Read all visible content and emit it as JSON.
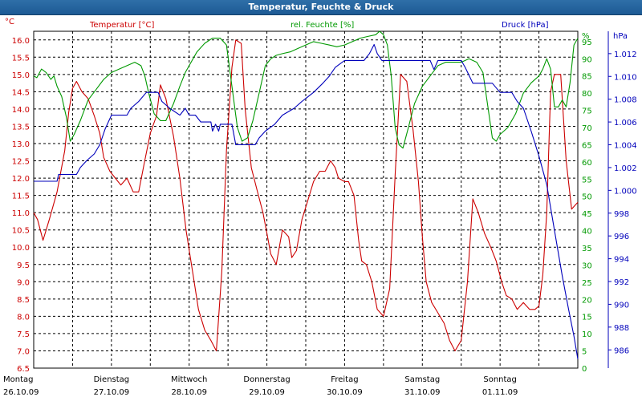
{
  "window": {
    "title": "Temperatur, Feuchte & Druck"
  },
  "chart_data": {
    "type": "line",
    "title": "Temperatur, Feuchte & Druck",
    "axes": {
      "temperature": {
        "label": "Temperatur [°C]",
        "unit": "°C",
        "min": 6.5,
        "max": 16.25,
        "color": "#cc0000",
        "ticks": [
          "16.0",
          "15.5",
          "15.0",
          "14.5",
          "14.0",
          "13.5",
          "13.0",
          "12.5",
          "12.0",
          "11.5",
          "11.0",
          "10.5",
          "10.0",
          "9.5",
          "9.0",
          "8.5",
          "8.0",
          "7.5",
          "7.0",
          "6.5"
        ]
      },
      "humidity": {
        "label": "rel. Feuchte [%]",
        "unit": "%",
        "min": 0,
        "max": 98,
        "color": "#009900",
        "ticks": [
          "95",
          "90",
          "85",
          "80",
          "75",
          "70",
          "65",
          "60",
          "55",
          "50",
          "45",
          "40",
          "35",
          "30",
          "25",
          "20",
          "15",
          "10",
          "5",
          "0"
        ]
      },
      "pressure": {
        "label": "Druck [hPa]",
        "unit": "hPa",
        "min": 984.4,
        "max": 1013.96,
        "color": "#0000bb",
        "ticks": [
          "1.012",
          "1.010",
          "1.008",
          "1.006",
          "1.004",
          "1.002",
          "1.000",
          "998",
          "996",
          "994",
          "992",
          "990",
          "988",
          "986"
        ]
      }
    },
    "x": {
      "start": 0,
      "end": 7,
      "day_labels": [
        {
          "day": "Montag",
          "date": "26.10.09"
        },
        {
          "day": "Dienstag",
          "date": "27.10.09"
        },
        {
          "day": "Mittwoch",
          "date": "28.10.09"
        },
        {
          "day": "Donnerstag",
          "date": "29.10.09"
        },
        {
          "day": "Freitag",
          "date": "30.10.09"
        },
        {
          "day": "Samstag",
          "date": "31.10.09"
        },
        {
          "day": "Sonntag",
          "date": "01.11.09"
        }
      ]
    },
    "series": [
      {
        "name": "Temperatur [°C]",
        "axis": "temperature",
        "color": "#cc0000",
        "points": [
          [
            0,
            11.0
          ],
          [
            0.05,
            10.8
          ],
          [
            0.12,
            10.2
          ],
          [
            0.2,
            10.8
          ],
          [
            0.3,
            11.6
          ],
          [
            0.4,
            12.8
          ],
          [
            0.45,
            13.9
          ],
          [
            0.5,
            14.6
          ],
          [
            0.55,
            14.8
          ],
          [
            0.62,
            14.5
          ],
          [
            0.7,
            14.3
          ],
          [
            0.78,
            13.8
          ],
          [
            0.85,
            13.3
          ],
          [
            0.9,
            12.6
          ],
          [
            0.98,
            12.2
          ],
          [
            1.05,
            12.0
          ],
          [
            1.12,
            11.8
          ],
          [
            1.2,
            12.0
          ],
          [
            1.28,
            11.6
          ],
          [
            1.35,
            11.6
          ],
          [
            1.42,
            12.4
          ],
          [
            1.5,
            13.3
          ],
          [
            1.58,
            13.8
          ],
          [
            1.63,
            14.7
          ],
          [
            1.7,
            14.3
          ],
          [
            1.8,
            13.2
          ],
          [
            1.88,
            12.0
          ],
          [
            1.96,
            10.5
          ],
          [
            2.05,
            9.2
          ],
          [
            2.12,
            8.2
          ],
          [
            2.2,
            7.6
          ],
          [
            2.28,
            7.3
          ],
          [
            2.35,
            7.0
          ],
          [
            2.42,
            9.3
          ],
          [
            2.48,
            12.8
          ],
          [
            2.55,
            15.2
          ],
          [
            2.6,
            16.0
          ],
          [
            2.67,
            15.9
          ],
          [
            2.72,
            14.0
          ],
          [
            2.8,
            12.3
          ],
          [
            2.88,
            11.6
          ],
          [
            2.95,
            11.0
          ],
          [
            3.0,
            10.4
          ],
          [
            3.05,
            9.8
          ],
          [
            3.12,
            9.5
          ],
          [
            3.2,
            10.5
          ],
          [
            3.28,
            10.3
          ],
          [
            3.32,
            9.7
          ],
          [
            3.38,
            9.9
          ],
          [
            3.45,
            10.8
          ],
          [
            3.52,
            11.3
          ],
          [
            3.6,
            11.9
          ],
          [
            3.68,
            12.2
          ],
          [
            3.75,
            12.2
          ],
          [
            3.82,
            12.5
          ],
          [
            3.88,
            12.3
          ],
          [
            3.92,
            12.0
          ],
          [
            4.0,
            11.9
          ],
          [
            4.05,
            11.9
          ],
          [
            4.12,
            11.5
          ],
          [
            4.18,
            10.2
          ],
          [
            4.22,
            9.6
          ],
          [
            4.28,
            9.5
          ],
          [
            4.35,
            9.0
          ],
          [
            4.42,
            8.2
          ],
          [
            4.5,
            8.0
          ],
          [
            4.58,
            8.8
          ],
          [
            4.65,
            12.1
          ],
          [
            4.72,
            15.0
          ],
          [
            4.8,
            14.8
          ],
          [
            4.88,
            13.4
          ],
          [
            4.95,
            11.9
          ],
          [
            5.0,
            10.3
          ],
          [
            5.05,
            9.0
          ],
          [
            5.12,
            8.4
          ],
          [
            5.2,
            8.1
          ],
          [
            5.28,
            7.8
          ],
          [
            5.35,
            7.3
          ],
          [
            5.42,
            7.0
          ],
          [
            5.5,
            7.3
          ],
          [
            5.58,
            9.0
          ],
          [
            5.65,
            11.4
          ],
          [
            5.72,
            11.0
          ],
          [
            5.8,
            10.4
          ],
          [
            5.88,
            10.0
          ],
          [
            5.95,
            9.6
          ],
          [
            6.02,
            9.0
          ],
          [
            6.08,
            8.6
          ],
          [
            6.15,
            8.5
          ],
          [
            6.22,
            8.2
          ],
          [
            6.3,
            8.4
          ],
          [
            6.38,
            8.2
          ],
          [
            6.45,
            8.2
          ],
          [
            6.5,
            8.3
          ],
          [
            6.55,
            9.2
          ],
          [
            6.6,
            11.0
          ],
          [
            6.65,
            14.5
          ],
          [
            6.7,
            15.0
          ],
          [
            6.78,
            15.0
          ],
          [
            6.85,
            12.5
          ],
          [
            6.92,
            11.1
          ],
          [
            7.0,
            11.3
          ]
        ]
      },
      {
        "name": "rel. Feuchte [%]",
        "axis": "humidity",
        "color": "#009900",
        "points": [
          [
            0,
            85
          ],
          [
            0.04,
            84.5
          ],
          [
            0.1,
            87
          ],
          [
            0.16,
            86
          ],
          [
            0.22,
            84
          ],
          [
            0.26,
            85
          ],
          [
            0.3,
            82
          ],
          [
            0.36,
            79
          ],
          [
            0.42,
            73
          ],
          [
            0.47,
            66
          ],
          [
            0.52,
            68
          ],
          [
            0.6,
            72
          ],
          [
            0.7,
            78
          ],
          [
            0.8,
            81
          ],
          [
            0.9,
            84
          ],
          [
            1.0,
            86
          ],
          [
            1.1,
            87
          ],
          [
            1.2,
            88
          ],
          [
            1.3,
            89
          ],
          [
            1.38,
            88
          ],
          [
            1.43,
            85
          ],
          [
            1.48,
            80
          ],
          [
            1.55,
            74
          ],
          [
            1.63,
            72
          ],
          [
            1.7,
            72
          ],
          [
            1.8,
            77
          ],
          [
            1.88,
            82
          ],
          [
            1.95,
            86
          ],
          [
            2.0,
            88
          ],
          [
            2.1,
            92
          ],
          [
            2.2,
            94.5
          ],
          [
            2.3,
            96
          ],
          [
            2.4,
            96
          ],
          [
            2.48,
            94
          ],
          [
            2.55,
            82
          ],
          [
            2.62,
            70
          ],
          [
            2.68,
            66
          ],
          [
            2.75,
            67
          ],
          [
            2.82,
            72
          ],
          [
            2.9,
            80
          ],
          [
            2.98,
            88
          ],
          [
            3.05,
            90
          ],
          [
            3.12,
            91
          ],
          [
            3.2,
            91.5
          ],
          [
            3.3,
            92
          ],
          [
            3.4,
            93
          ],
          [
            3.5,
            94
          ],
          [
            3.6,
            95
          ],
          [
            3.7,
            94.5
          ],
          [
            3.8,
            94
          ],
          [
            3.9,
            93.5
          ],
          [
            4.0,
            94
          ],
          [
            4.1,
            95
          ],
          [
            4.2,
            96
          ],
          [
            4.3,
            96.5
          ],
          [
            4.4,
            97
          ],
          [
            4.45,
            98
          ],
          [
            4.5,
            97
          ],
          [
            4.55,
            94
          ],
          [
            4.6,
            85
          ],
          [
            4.65,
            70
          ],
          [
            4.7,
            65
          ],
          [
            4.75,
            64
          ],
          [
            4.82,
            70
          ],
          [
            4.9,
            77
          ],
          [
            5.0,
            82
          ],
          [
            5.1,
            85
          ],
          [
            5.2,
            88
          ],
          [
            5.3,
            89
          ],
          [
            5.4,
            89
          ],
          [
            5.5,
            89
          ],
          [
            5.6,
            90
          ],
          [
            5.7,
            89
          ],
          [
            5.78,
            86
          ],
          [
            5.85,
            75
          ],
          [
            5.9,
            67
          ],
          [
            5.95,
            66
          ],
          [
            6.0,
            68
          ],
          [
            6.1,
            70
          ],
          [
            6.2,
            74
          ],
          [
            6.3,
            80
          ],
          [
            6.4,
            83
          ],
          [
            6.5,
            85
          ],
          [
            6.55,
            87
          ],
          [
            6.6,
            90
          ],
          [
            6.65,
            87
          ],
          [
            6.7,
            76
          ],
          [
            6.75,
            76
          ],
          [
            6.8,
            78
          ],
          [
            6.85,
            76
          ],
          [
            6.9,
            83
          ],
          [
            6.95,
            94
          ],
          [
            7.0,
            96
          ]
        ]
      },
      {
        "name": "Druck [hPa]",
        "axis": "pressure",
        "color": "#0000bb",
        "points": [
          [
            0,
            1000.8
          ],
          [
            0.3,
            1000.8
          ],
          [
            0.32,
            1001.4
          ],
          [
            0.55,
            1001.4
          ],
          [
            0.6,
            1002.0
          ],
          [
            0.68,
            1002.6
          ],
          [
            0.78,
            1003.2
          ],
          [
            0.85,
            1004.0
          ],
          [
            0.92,
            1005.4
          ],
          [
            1.0,
            1006.6
          ],
          [
            1.2,
            1006.6
          ],
          [
            1.25,
            1007.2
          ],
          [
            1.35,
            1007.8
          ],
          [
            1.45,
            1008.6
          ],
          [
            1.6,
            1008.6
          ],
          [
            1.65,
            1007.8
          ],
          [
            1.75,
            1007.2
          ],
          [
            1.88,
            1006.6
          ],
          [
            1.95,
            1007.2
          ],
          [
            2.0,
            1006.6
          ],
          [
            2.08,
            1006.6
          ],
          [
            2.15,
            1006.0
          ],
          [
            2.28,
            1006.0
          ],
          [
            2.3,
            1005.2
          ],
          [
            2.34,
            1005.8
          ],
          [
            2.38,
            1005.2
          ],
          [
            2.4,
            1005.8
          ],
          [
            2.55,
            1005.8
          ],
          [
            2.6,
            1004.0
          ],
          [
            2.85,
            1004.0
          ],
          [
            2.9,
            1004.6
          ],
          [
            2.98,
            1005.2
          ],
          [
            3.1,
            1005.8
          ],
          [
            3.2,
            1006.6
          ],
          [
            3.35,
            1007.2
          ],
          [
            3.45,
            1007.8
          ],
          [
            3.6,
            1008.6
          ],
          [
            3.72,
            1009.4
          ],
          [
            3.8,
            1010.0
          ],
          [
            3.88,
            1010.8
          ],
          [
            4.0,
            1011.4
          ],
          [
            4.25,
            1011.4
          ],
          [
            4.32,
            1012.0
          ],
          [
            4.38,
            1012.8
          ],
          [
            4.42,
            1012.0
          ],
          [
            4.48,
            1011.4
          ],
          [
            5.0,
            1011.4
          ],
          [
            5.1,
            1011.4
          ],
          [
            5.15,
            1010.6
          ],
          [
            5.2,
            1011.4
          ],
          [
            5.5,
            1011.4
          ],
          [
            5.55,
            1010.8
          ],
          [
            5.65,
            1009.4
          ],
          [
            5.9,
            1009.4
          ],
          [
            6.0,
            1008.6
          ],
          [
            6.15,
            1008.6
          ],
          [
            6.22,
            1007.8
          ],
          [
            6.3,
            1007.2
          ],
          [
            6.4,
            1005.2
          ],
          [
            6.5,
            1003.0
          ],
          [
            6.6,
            1000.5
          ],
          [
            6.7,
            996.5
          ],
          [
            6.8,
            992.5
          ],
          [
            6.88,
            989.6
          ],
          [
            6.95,
            987.2
          ],
          [
            7.0,
            985.2
          ]
        ]
      }
    ]
  }
}
